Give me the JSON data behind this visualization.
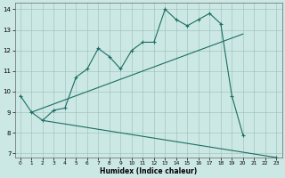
{
  "title": "",
  "xlabel": "Humidex (Indice chaleur)",
  "xlim": [
    -0.5,
    23.5
  ],
  "ylim": [
    6.8,
    14.3
  ],
  "xticks": [
    0,
    1,
    2,
    3,
    4,
    5,
    6,
    7,
    8,
    9,
    10,
    11,
    12,
    13,
    14,
    15,
    16,
    17,
    18,
    19,
    20,
    21,
    22,
    23
  ],
  "yticks": [
    7,
    8,
    9,
    10,
    11,
    12,
    13,
    14
  ],
  "bg_color": "#cce8e4",
  "line_color": "#1a6e64",
  "line1_x": [
    0,
    1,
    2,
    3,
    4,
    5,
    6,
    7,
    8,
    9,
    10,
    11,
    12,
    13,
    14,
    15,
    16,
    17,
    18,
    19,
    20,
    23
  ],
  "line1_y": [
    9.8,
    9.0,
    8.6,
    9.1,
    9.2,
    10.7,
    11.1,
    12.1,
    11.7,
    11.1,
    12.0,
    12.4,
    12.4,
    14.0,
    13.5,
    13.2,
    13.5,
    13.8,
    13.3,
    9.8,
    7.9,
    6.8
  ],
  "line2_x": [
    1,
    20
  ],
  "line2_y": [
    9.0,
    12.8
  ],
  "line3_x": [
    2,
    23
  ],
  "line3_y": [
    8.6,
    6.8
  ],
  "figwidth": 3.2,
  "figheight": 2.0,
  "dpi": 100
}
